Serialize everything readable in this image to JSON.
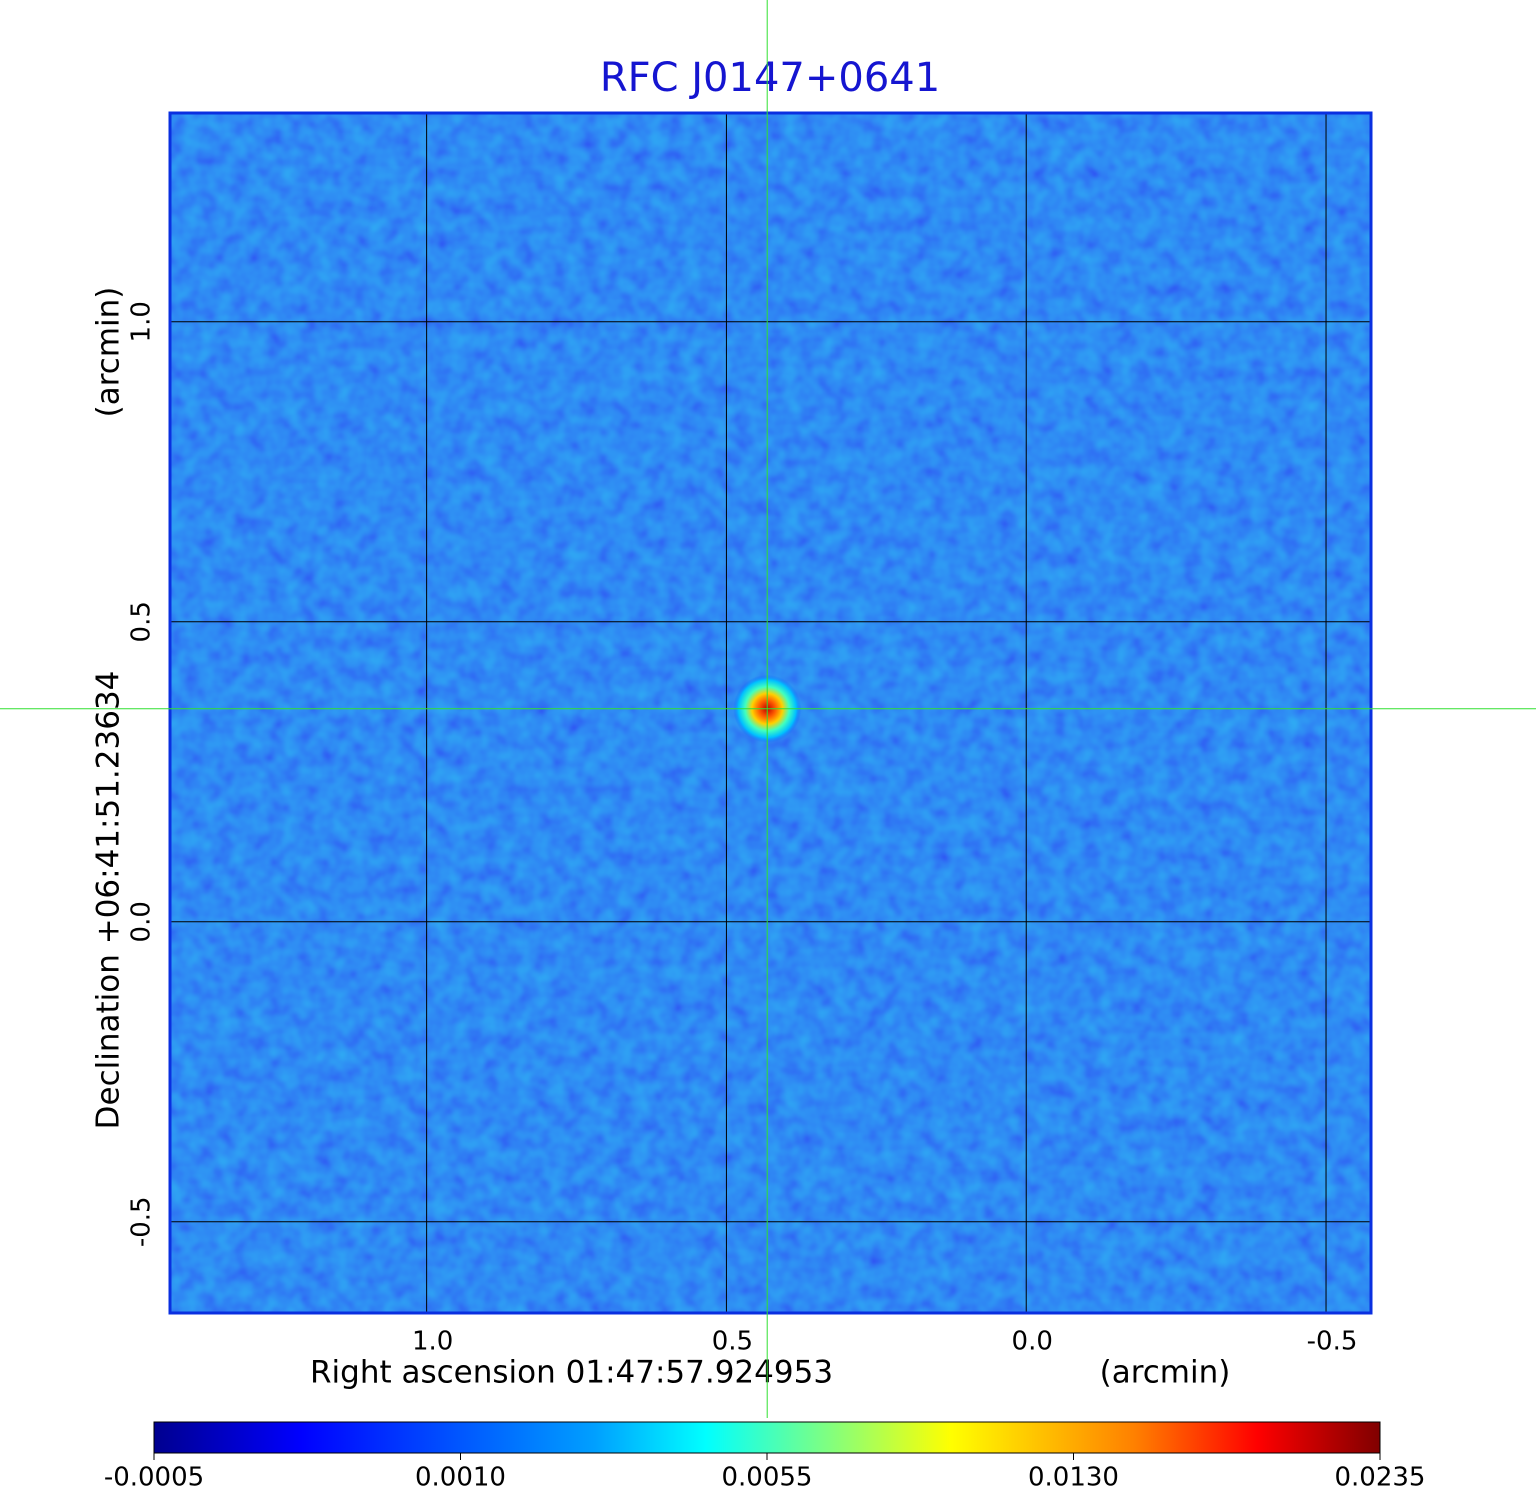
{
  "chart_data": {
    "type": "image",
    "title": "RFC J0147+0641",
    "x_label": "Right ascension  01:47:57.924953",
    "x_unit": "(arcmin)",
    "y_label": "Declination  +06:41:51.23634",
    "y_unit": "(arcmin)",
    "xlim": [
      1.428,
      -0.575
    ],
    "ylim": [
      -0.652,
      1.348
    ],
    "xticks": [
      {
        "value": 1,
        "label": "1.0"
      },
      0.5,
      {
        "value": 0,
        "label": "0.0"
      },
      -0.5
    ],
    "yticks": [
      {
        "value": 1,
        "label": "1.0"
      },
      0.5,
      {
        "value": 0,
        "label": "0.0"
      },
      -0.5
    ],
    "grid": true,
    "colormap": "jet",
    "colorbar_scale": "sqrt",
    "colorbar_lim": [
      -0.0005,
      0.0235
    ],
    "colorbar_ticks": [
      -0.0005,
      {
        "value": 0.001,
        "label": "0.0010"
      },
      0.0055,
      {
        "value": 0.013,
        "label": "0.0130"
      },
      0.0235
    ],
    "source": {
      "x": 0.432,
      "y": 0.355,
      "peak": 0.0235
    }
  }
}
